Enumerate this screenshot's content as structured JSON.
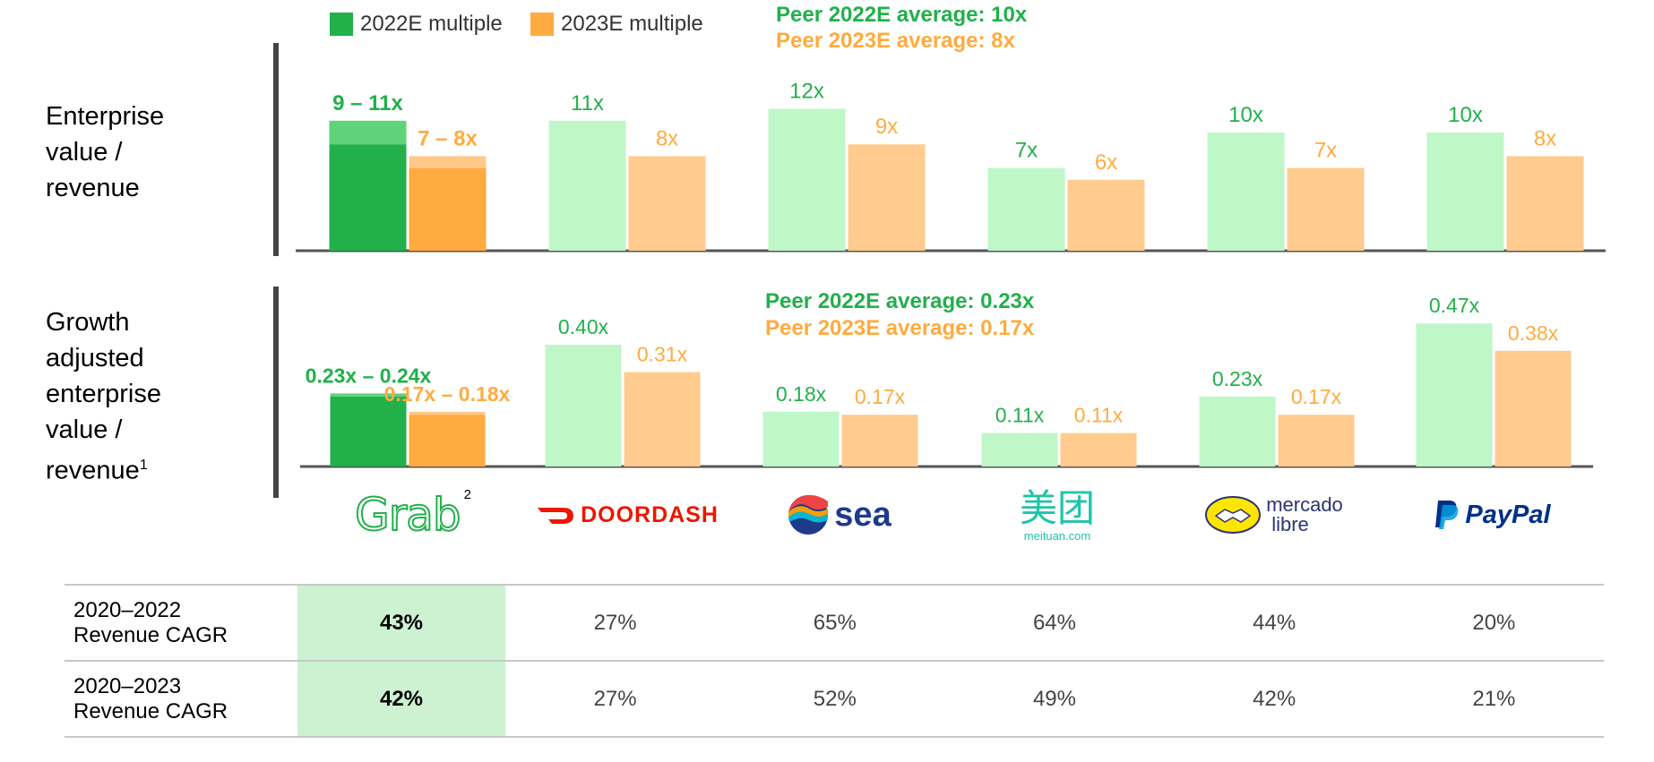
{
  "legend": {
    "label_2022": "2022E multiple",
    "label_2023": "2023E multiple"
  },
  "colors": {
    "grab_green": "#22b04b",
    "grab_green_light": "#5fd37a",
    "grab_orange": "#ffab40",
    "grab_orange_light": "#ffc98a",
    "peer_green": "#bff7c8",
    "peer_orange": "#ffcb8e",
    "label_green": "#22b04b",
    "label_orange": "#ffab40"
  },
  "rows": {
    "ev_label_1": "Enterprise",
    "ev_label_2": "value /",
    "ev_label_3": "revenue",
    "ga_label_1": "Growth",
    "ga_label_2": "adjusted",
    "ga_label_3": "enterprise",
    "ga_label_4": "value /",
    "ga_label_5": "revenue",
    "ga_label_sup": "1"
  },
  "peer_avg": {
    "ev_2022": "Peer 2022E average: 10x",
    "ev_2023": "Peer 2023E average: 8x",
    "ga_2022": "Peer 2022E average: 0.23x",
    "ga_2023": "Peer 2023E average: 0.17x"
  },
  "companies": [
    "Grab",
    "DoorDash",
    "Sea",
    "Meituan",
    "Mercado Libre",
    "PayPal"
  ],
  "logos": {
    "grab": "Grab",
    "grab_sup": "2",
    "doordash": "DOORDASH",
    "sea": "sea",
    "meituan_cn": "美团",
    "meituan_url": "meituan.com",
    "mercado_1": "mercado",
    "mercado_2": "libre",
    "paypal": "PayPal"
  },
  "chart_data": [
    {
      "type": "bar",
      "title": "Enterprise value / revenue",
      "categories": [
        "Grab",
        "DoorDash",
        "Sea",
        "Meituan",
        "Mercado Libre",
        "PayPal"
      ],
      "series": [
        {
          "name": "2022E multiple",
          "values": [
            11,
            11,
            12,
            7,
            10,
            10
          ],
          "range_low": [
            9,
            null,
            null,
            null,
            null,
            null
          ],
          "labels": [
            "9 – 11x",
            "11x",
            "12x",
            "7x",
            "10x",
            "10x"
          ]
        },
        {
          "name": "2023E multiple",
          "values": [
            8,
            8,
            9,
            6,
            7,
            8
          ],
          "range_low": [
            7,
            null,
            null,
            null,
            null,
            null
          ],
          "labels": [
            "7 – 8x",
            "8x",
            "9x",
            "6x",
            "7x",
            "8x"
          ]
        }
      ],
      "peer_average": {
        "2022E": 10,
        "2023E": 8
      }
    },
    {
      "type": "bar",
      "title": "Growth adjusted enterprise value / revenue",
      "categories": [
        "Grab",
        "DoorDash",
        "Sea",
        "Meituan",
        "Mercado Libre",
        "PayPal"
      ],
      "series": [
        {
          "name": "2022E multiple",
          "values": [
            0.24,
            0.4,
            0.18,
            0.11,
            0.23,
            0.47
          ],
          "range_low": [
            0.23,
            null,
            null,
            null,
            null,
            null
          ],
          "labels": [
            "0.23x – 0.24x",
            "0.40x",
            "0.18x",
            "0.11x",
            "0.23x",
            "0.47x"
          ]
        },
        {
          "name": "2023E multiple",
          "values": [
            0.18,
            0.31,
            0.17,
            0.11,
            0.17,
            0.38
          ],
          "range_low": [
            0.17,
            null,
            null,
            null,
            null,
            null
          ],
          "labels": [
            "0.17x – 0.18x",
            "0.31x",
            "0.17x",
            "0.11x",
            "0.17x",
            "0.38x"
          ]
        }
      ],
      "peer_average": {
        "2022E": 0.23,
        "2023E": 0.17
      }
    }
  ],
  "table": {
    "rows": [
      {
        "label_1": "2020–2022",
        "label_2": "Revenue CAGR",
        "values": [
          "43%",
          "27%",
          "65%",
          "64%",
          "44%",
          "20%"
        ]
      },
      {
        "label_1": "2020–2023",
        "label_2": "Revenue CAGR",
        "values": [
          "42%",
          "27%",
          "52%",
          "49%",
          "42%",
          "21%"
        ]
      }
    ]
  }
}
